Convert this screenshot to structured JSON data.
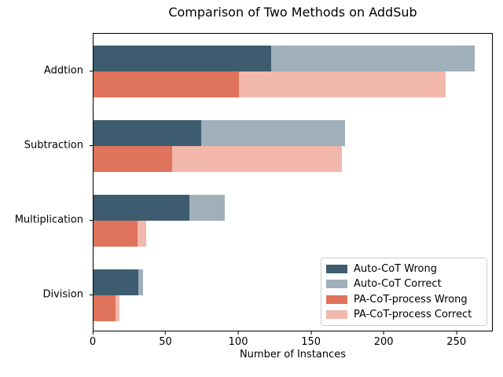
{
  "chart_data": {
    "type": "bar",
    "orientation": "horizontal",
    "title": "Comparison of Two Methods on AddSub",
    "xlabel": "Number of Instances",
    "ylabel": "",
    "categories": [
      "Addtion",
      "Subtraction",
      "Multiplication",
      "Division"
    ],
    "xlim": [
      0,
      275
    ],
    "xticks": [
      0,
      50,
      100,
      150,
      200,
      250
    ],
    "grid": false,
    "legend_position": "lower right",
    "bar_rows_per_category": 2,
    "groups": [
      {
        "name": "Auto-CoT",
        "segments": [
          {
            "name": "Auto-CoT Wrong",
            "color": "#3e5c70",
            "values": [
              122,
              74,
              66,
              31
            ]
          },
          {
            "name": "Auto-CoT Correct",
            "color": "#9fb0ba",
            "values": [
              140,
              99,
              24,
              3
            ]
          }
        ]
      },
      {
        "name": "PA-CoT-process",
        "segments": [
          {
            "name": "PA-CoT-process Wrong",
            "color": "#e0735b",
            "values": [
              100,
              54,
              30,
              15
            ]
          },
          {
            "name": "PA-CoT-process Correct",
            "color": "#f2b8ac",
            "values": [
              142,
              117,
              6,
              3
            ]
          }
        ]
      }
    ],
    "legend_entries": [
      "Auto-CoT Wrong",
      "Auto-CoT Correct",
      "PA-CoT-process Wrong",
      "PA-CoT-process Correct"
    ],
    "totals_by_category": {
      "Auto-CoT": [
        262,
        173,
        90,
        34
      ],
      "PA-CoT-process": [
        242,
        171,
        36,
        18
      ]
    },
    "colors": {
      "auto_cot_wrong": "#3e5c70",
      "auto_cot_correct": "#9fb0ba",
      "pa_cot_wrong": "#e0735b",
      "pa_cot_correct": "#f2b8ac",
      "axis": "#000000",
      "legend_border": "#cccccc",
      "background": "#ffffff"
    }
  }
}
